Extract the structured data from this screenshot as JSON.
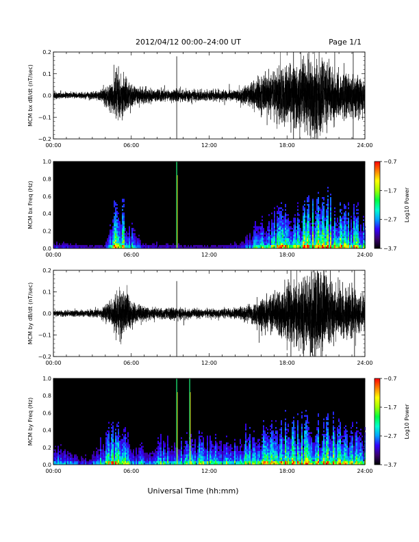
{
  "header": {
    "title": "2012/04/12  00:00–24:00 UT",
    "page": "Page 1/1"
  },
  "footer": {
    "xlabel": "Universal Time (hh:mm)"
  },
  "colors": {
    "trace": "#000000",
    "spectrogram_background": "#000000",
    "colorbar": [
      "#000000",
      "#3a0070",
      "#3300ff",
      "#00a0ff",
      "#00ffd0",
      "#00ff40",
      "#a0ff00",
      "#ffff00",
      "#ff8000",
      "#ff0000"
    ]
  },
  "chart_data": [
    {
      "type": "line",
      "panel": "bx-dbdt",
      "ylabel": "MCM bx dB/dt (nT/sec)",
      "ylim": [
        -0.2,
        0.2
      ],
      "yticks": [
        "0.2",
        "0.1",
        "0.0",
        "−0.1",
        "−0.2"
      ],
      "ytick_values": [
        0.2,
        0.1,
        0.0,
        -0.1,
        -0.2
      ],
      "xlim": [
        0,
        24
      ],
      "xticks": [
        "00:00",
        "06:00",
        "12:00",
        "18:00",
        "24:00"
      ],
      "x_unit": "hours UT",
      "envelope": {
        "x": [
          0,
          2,
          3.5,
          4.3,
          4.8,
          5.2,
          5.8,
          6.5,
          8,
          9.3,
          9.5,
          10,
          12,
          14,
          15,
          16,
          17,
          18,
          19,
          20,
          20.5,
          21,
          22,
          23,
          24
        ],
        "amplitude": [
          0.015,
          0.015,
          0.02,
          0.06,
          0.11,
          0.11,
          0.07,
          0.04,
          0.03,
          0.03,
          0.03,
          0.03,
          0.025,
          0.025,
          0.05,
          0.09,
          0.11,
          0.14,
          0.17,
          0.2,
          0.2,
          0.16,
          0.12,
          0.1,
          0.09
        ]
      },
      "spikes": [
        {
          "x": 9.5,
          "min": -0.2,
          "max": 0.18
        },
        {
          "x": 18.5,
          "min": -0.2,
          "max": 0.2
        },
        {
          "x": 23.1,
          "min": -0.2,
          "max": 0.2
        }
      ]
    },
    {
      "type": "heatmap",
      "panel": "bx-freq",
      "ylabel": "MCM bx Freq (Hz)",
      "ylim": [
        0,
        1.0
      ],
      "yticks": [
        "1.0",
        "0.8",
        "0.6",
        "0.4",
        "0.2",
        "0.0"
      ],
      "ytick_values": [
        1.0,
        0.8,
        0.6,
        0.4,
        0.2,
        0.0
      ],
      "xlim": [
        0,
        24
      ],
      "xticks": [
        "00:00",
        "06:00",
        "12:00",
        "18:00",
        "24:00"
      ],
      "colorbar": {
        "label": "Log10 Power",
        "range": [
          -3.7,
          -0.7
        ],
        "ticks": [
          "−0.7",
          "−1.7",
          "−2.7",
          "−3.7"
        ],
        "tick_values": [
          -0.7,
          -1.7,
          -2.7,
          -3.7
        ]
      },
      "activity": {
        "x": [
          0,
          1,
          2,
          3,
          4,
          4.4,
          4.8,
          5.5,
          6.3,
          7,
          9,
          11,
          13,
          14.5,
          15.5,
          16.5,
          17.5,
          18.5,
          19.5,
          20.5,
          21.5,
          22.5,
          23.5,
          24
        ],
        "level": [
          0.15,
          0.12,
          0.08,
          0.06,
          0.08,
          0.6,
          0.8,
          0.75,
          0.3,
          0.1,
          0.08,
          0.06,
          0.06,
          0.15,
          0.4,
          0.6,
          0.7,
          0.75,
          0.85,
          0.9,
          0.85,
          0.75,
          0.7,
          0.6
        ]
      },
      "vertical_lines": [
        {
          "x": 9.5,
          "max_freq": 1.0
        }
      ]
    },
    {
      "type": "line",
      "panel": "by-dbdt",
      "ylabel": "MCM by dB/dt (nT/sec)",
      "ylim": [
        -0.2,
        0.2
      ],
      "yticks": [
        "0.2",
        "0.1",
        "0.0",
        "−0.1",
        "−0.2"
      ],
      "ytick_values": [
        0.2,
        0.1,
        0.0,
        -0.1,
        -0.2
      ],
      "xlim": [
        0,
        24
      ],
      "xticks": [
        "00:00",
        "06:00",
        "12:00",
        "18:00",
        "24:00"
      ],
      "x_unit": "hours UT",
      "envelope": {
        "x": [
          0,
          2,
          3.5,
          4.3,
          4.8,
          5.2,
          5.8,
          6.5,
          8,
          9.3,
          9.5,
          10,
          12,
          14,
          15,
          16,
          17,
          18,
          19,
          20,
          20.5,
          21,
          22,
          23,
          24
        ],
        "amplitude": [
          0.015,
          0.015,
          0.02,
          0.05,
          0.1,
          0.12,
          0.08,
          0.04,
          0.025,
          0.03,
          0.03,
          0.025,
          0.02,
          0.025,
          0.04,
          0.07,
          0.1,
          0.15,
          0.17,
          0.2,
          0.2,
          0.17,
          0.14,
          0.12,
          0.08
        ]
      },
      "spikes": [
        {
          "x": 9.5,
          "min": -0.2,
          "max": 0.15
        },
        {
          "x": 18.3,
          "min": -0.2,
          "max": 0.2
        },
        {
          "x": 23.2,
          "min": -0.2,
          "max": 0.2
        }
      ]
    },
    {
      "type": "heatmap",
      "panel": "by-freq",
      "ylabel": "MCM by Freq (Hz)",
      "ylim": [
        0,
        1.0
      ],
      "yticks": [
        "1.0",
        "0.8",
        "0.6",
        "0.4",
        "0.2",
        "0.0"
      ],
      "ytick_values": [
        1.0,
        0.8,
        0.6,
        0.4,
        0.2,
        0.0
      ],
      "xlim": [
        0,
        24
      ],
      "xticks": [
        "00:00",
        "06:00",
        "12:00",
        "18:00",
        "24:00"
      ],
      "colorbar": {
        "label": "Log10 Power",
        "range": [
          -3.7,
          -0.7
        ],
        "ticks": [
          "−0.7",
          "−1.7",
          "−2.7",
          "−3.7"
        ],
        "tick_values": [
          -0.7,
          -1.7,
          -2.7,
          -3.7
        ]
      },
      "activity": {
        "x": [
          0,
          1,
          2,
          3,
          3.5,
          4,
          4.5,
          5,
          5.5,
          6.2,
          7,
          8,
          9,
          10,
          11,
          12,
          13,
          14,
          15,
          16,
          17,
          18,
          19,
          20,
          21,
          22,
          23,
          24
        ],
        "level": [
          0.4,
          0.3,
          0.15,
          0.15,
          0.4,
          0.5,
          0.7,
          0.7,
          0.6,
          0.3,
          0.35,
          0.45,
          0.45,
          0.5,
          0.55,
          0.5,
          0.5,
          0.55,
          0.6,
          0.65,
          0.75,
          0.8,
          0.8,
          0.85,
          0.8,
          0.75,
          0.7,
          0.6
        ]
      },
      "vertical_lines": [
        {
          "x": 9.5,
          "max_freq": 1.0
        },
        {
          "x": 10.5,
          "max_freq": 1.0
        }
      ]
    }
  ]
}
